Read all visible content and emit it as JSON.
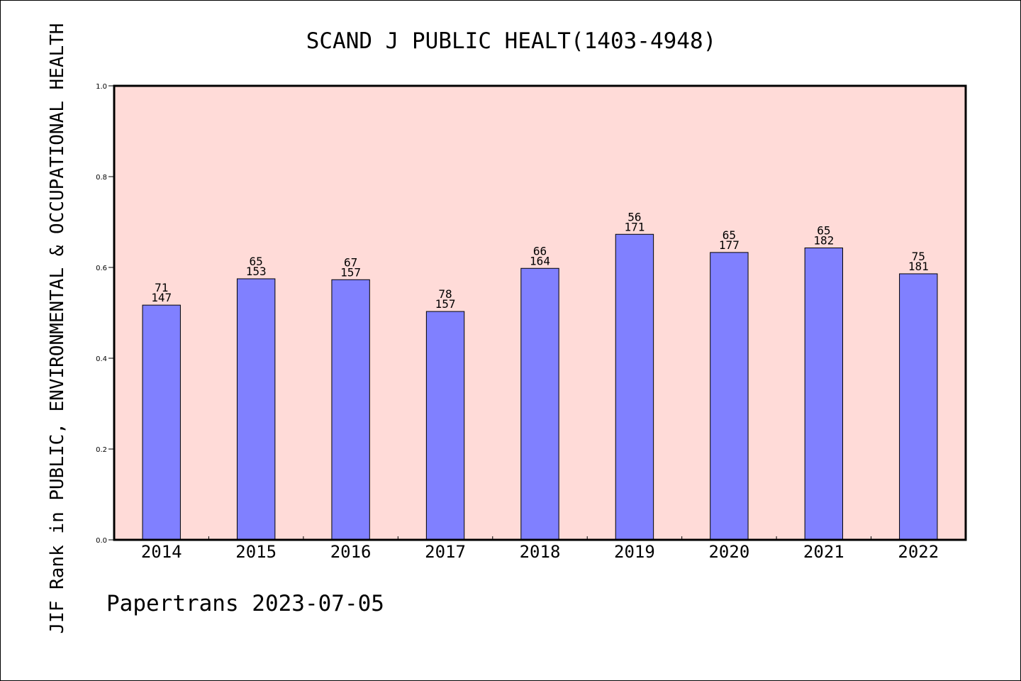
{
  "chart_data": {
    "type": "bar",
    "title": "SCAND J PUBLIC HEALT(1403-4948)",
    "ylabel": "JIF Rank in PUBLIC, ENVIRONMENTAL & OCCUPATIONAL HEALTH",
    "xlabel": "",
    "categories": [
      "2014",
      "2015",
      "2016",
      "2017",
      "2018",
      "2019",
      "2020",
      "2021",
      "2022"
    ],
    "values": [
      0.517,
      0.575,
      0.573,
      0.503,
      0.598,
      0.673,
      0.633,
      0.643,
      0.586
    ],
    "rank": [
      "71",
      "65",
      "67",
      "78",
      "66",
      "56",
      "65",
      "65",
      "75"
    ],
    "total": [
      "147",
      "153",
      "157",
      "157",
      "164",
      "171",
      "177",
      "182",
      "181"
    ],
    "ylim": [
      0,
      1.0
    ],
    "yticks": [
      "0.0",
      "0.2",
      "0.4",
      "0.6",
      "0.8",
      "1.0"
    ],
    "grid": false,
    "colors": {
      "bar": "#8080ff",
      "plot_background": "#ffdbd8",
      "axis": "#000000"
    }
  },
  "footer": {
    "text": "Papertrans 2023-07-05"
  }
}
